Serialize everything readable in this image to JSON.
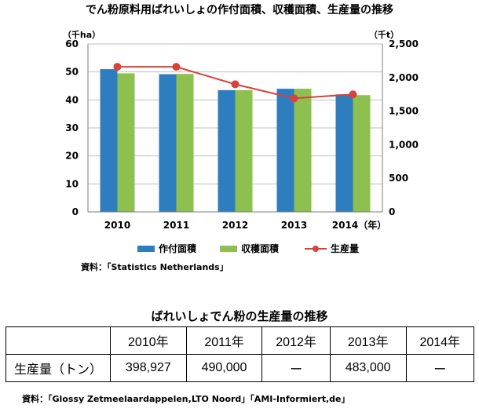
{
  "title": "でん粉原料用ばれいしょの作付面積、収穫面積、生産量の推移",
  "chart_data": {
    "type": "bar",
    "categories": [
      "2010",
      "2011",
      "2012",
      "2013",
      "2014（年）"
    ],
    "series": [
      {
        "name": "作付面積",
        "kind": "bar",
        "axis": "left",
        "color": "#2e7ebf",
        "values": [
          51,
          49.2,
          43.5,
          44,
          42
        ]
      },
      {
        "name": "収穫面積",
        "kind": "bar",
        "axis": "left",
        "color": "#8dc04f",
        "values": [
          49.5,
          49.3,
          43.5,
          44,
          41.7
        ]
      },
      {
        "name": "生産量",
        "kind": "line",
        "axis": "right",
        "color": "#d8423a",
        "values": [
          2160,
          2160,
          1900,
          1690,
          1750
        ]
      }
    ],
    "y_left": {
      "unit": "（千ha）",
      "ylim": [
        0,
        60
      ],
      "ticks": [
        "0",
        "10",
        "20",
        "30",
        "40",
        "50",
        "60"
      ]
    },
    "y_right": {
      "unit": "（千t）",
      "ylim": [
        0,
        2500
      ],
      "ticks": [
        "0",
        "500",
        "1,000",
        "1,500",
        "2,000",
        "2,500"
      ]
    },
    "grid": true,
    "legend": "bottom"
  },
  "source_chart": "資料：「Statistics Netherlands」",
  "table": {
    "title": "ばれいしょでん粉の生産量の推移",
    "header": [
      "",
      "2010年",
      "2011年",
      "2012年",
      "2013年",
      "2014年"
    ],
    "row_label": "生産量（トン）",
    "values": [
      "398,927",
      "490,000",
      "ー",
      "483,000",
      "ー"
    ]
  },
  "source_table": "資料：「Glossy Zetmeelaardappelen,LTO Noord」「AMI-Informiert,de」"
}
